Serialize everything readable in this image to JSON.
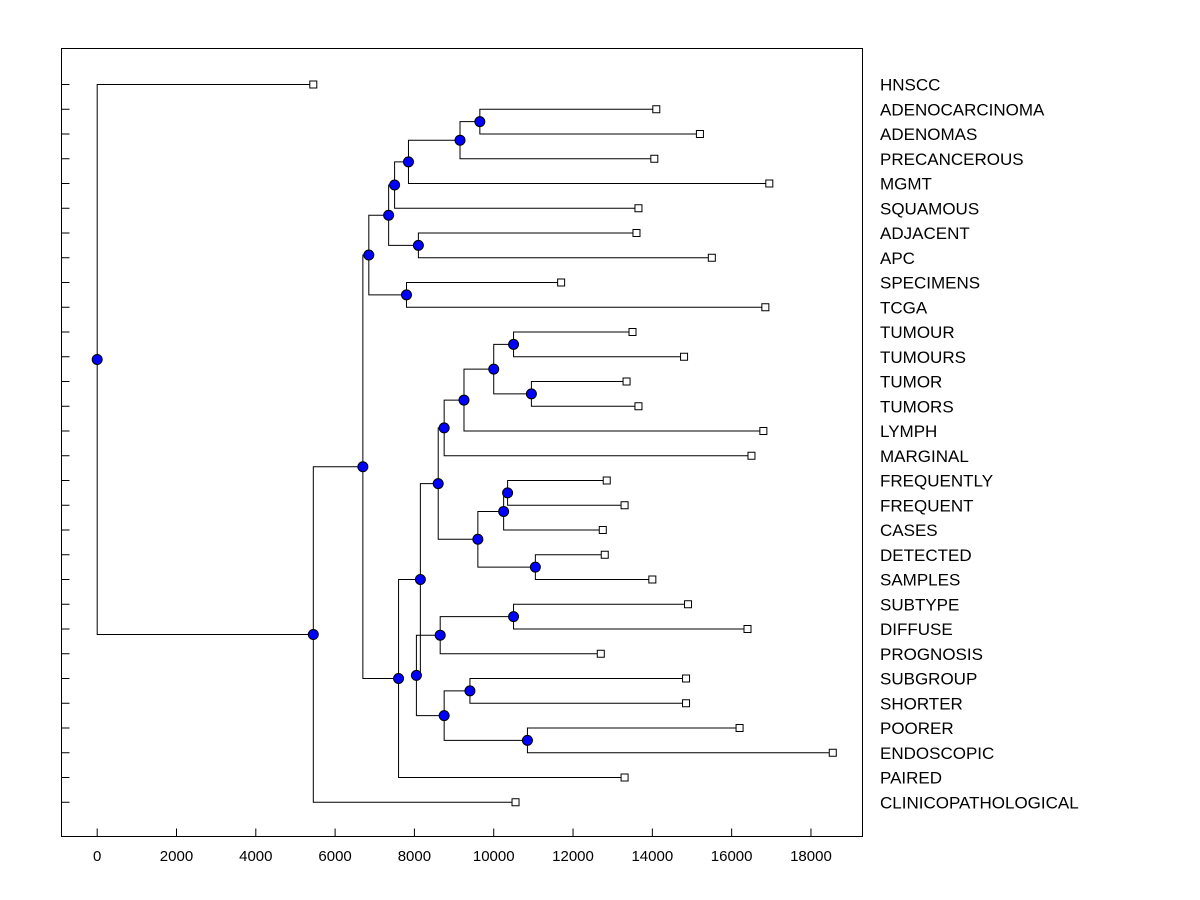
{
  "chart_data": {
    "type": "dendrogram",
    "title": "",
    "xlabel": "",
    "ylabel": "",
    "xlim": [
      -900,
      19300
    ],
    "x_ticks": [
      0,
      2000,
      4000,
      6000,
      8000,
      10000,
      12000,
      14000,
      16000,
      18000
    ],
    "leaf_order": [
      "HNSCC",
      "ADENOCARCINOMA",
      "ADENOMAS",
      "PRECANCEROUS",
      "MGMT",
      "SQUAMOUS",
      "ADJACENT",
      "APC",
      "SPECIMENS",
      "TCGA",
      "TUMOUR",
      "TUMOURS",
      "TUMOR",
      "TUMORS",
      "LYMPH",
      "MARGINAL",
      "FREQUENTLY",
      "FREQUENT",
      "CASES",
      "DETECTED",
      "SAMPLES",
      "SUBTYPE",
      "DIFFUSE",
      "PROGNOSIS",
      "SUBGROUP",
      "SHORTER",
      "POORER",
      "ENDOSCOPIC",
      "PAIRED",
      "CLINICOPATHOLOGICAL"
    ],
    "leaf_values": [
      5450,
      14100,
      15200,
      14050,
      16950,
      13650,
      13600,
      15500,
      11700,
      16850,
      13500,
      14800,
      13350,
      13650,
      16800,
      16500,
      12850,
      13300,
      12750,
      12800,
      14000,
      14900,
      16400,
      12700,
      14850,
      14850,
      16200,
      18550,
      13300,
      10550
    ],
    "merges": [
      {
        "id": "n1",
        "a": "ADENOCARCINOMA",
        "b": "ADENOMAS",
        "value": 9650
      },
      {
        "id": "n2",
        "a": "n1",
        "b": "PRECANCEROUS",
        "value": 9150
      },
      {
        "id": "n3",
        "a": "n2",
        "b": "MGMT",
        "value": 7850
      },
      {
        "id": "n4",
        "a": "n3",
        "b": "SQUAMOUS",
        "value": 7500
      },
      {
        "id": "n5",
        "a": "ADJACENT",
        "b": "APC",
        "value": 8100
      },
      {
        "id": "n6",
        "a": "n4",
        "b": "n5",
        "value": 7350
      },
      {
        "id": "n7",
        "a": "SPECIMENS",
        "b": "TCGA",
        "value": 7800
      },
      {
        "id": "n8",
        "a": "n6",
        "b": "n7",
        "value": 6850
      },
      {
        "id": "n9",
        "a": "TUMOUR",
        "b": "TUMOURS",
        "value": 10500
      },
      {
        "id": "n10",
        "a": "TUMOR",
        "b": "TUMORS",
        "value": 10950
      },
      {
        "id": "n11",
        "a": "n9",
        "b": "n10",
        "value": 10000
      },
      {
        "id": "n12",
        "a": "n11",
        "b": "LYMPH",
        "value": 9250
      },
      {
        "id": "n13",
        "a": "n12",
        "b": "MARGINAL",
        "value": 8750
      },
      {
        "id": "n14",
        "a": "FREQUENTLY",
        "b": "FREQUENT",
        "value": 10350
      },
      {
        "id": "n15",
        "a": "n14",
        "b": "CASES",
        "value": 10250
      },
      {
        "id": "n16",
        "a": "DETECTED",
        "b": "SAMPLES",
        "value": 11050
      },
      {
        "id": "n17",
        "a": "n15",
        "b": "n16",
        "value": 9600
      },
      {
        "id": "n18",
        "a": "n13",
        "b": "n17",
        "value": 8600
      },
      {
        "id": "n19",
        "a": "SUBTYPE",
        "b": "DIFFUSE",
        "value": 10500
      },
      {
        "id": "n20",
        "a": "n19",
        "b": "PROGNOSIS",
        "value": 8650
      },
      {
        "id": "n21",
        "a": "SUBGROUP",
        "b": "SHORTER",
        "value": 9400
      },
      {
        "id": "n22",
        "a": "POORER",
        "b": "ENDOSCOPIC",
        "value": 10850
      },
      {
        "id": "n23",
        "a": "n21",
        "b": "n22",
        "value": 8750
      },
      {
        "id": "n24",
        "a": "n20",
        "b": "n23",
        "value": 8050
      },
      {
        "id": "n25",
        "a": "n18",
        "b": "n24",
        "value": 8150
      },
      {
        "id": "n26",
        "a": "n25",
        "b": "PAIRED",
        "value": 7600
      },
      {
        "id": "n27",
        "a": "n8",
        "b": "n26",
        "value": 6700
      },
      {
        "id": "n28",
        "a": "n27",
        "b": "CLINICOPATHOLOGICAL",
        "value": 5450
      },
      {
        "id": "n29",
        "a": "HNSCC",
        "b": "n28",
        "value": 0
      }
    ]
  }
}
